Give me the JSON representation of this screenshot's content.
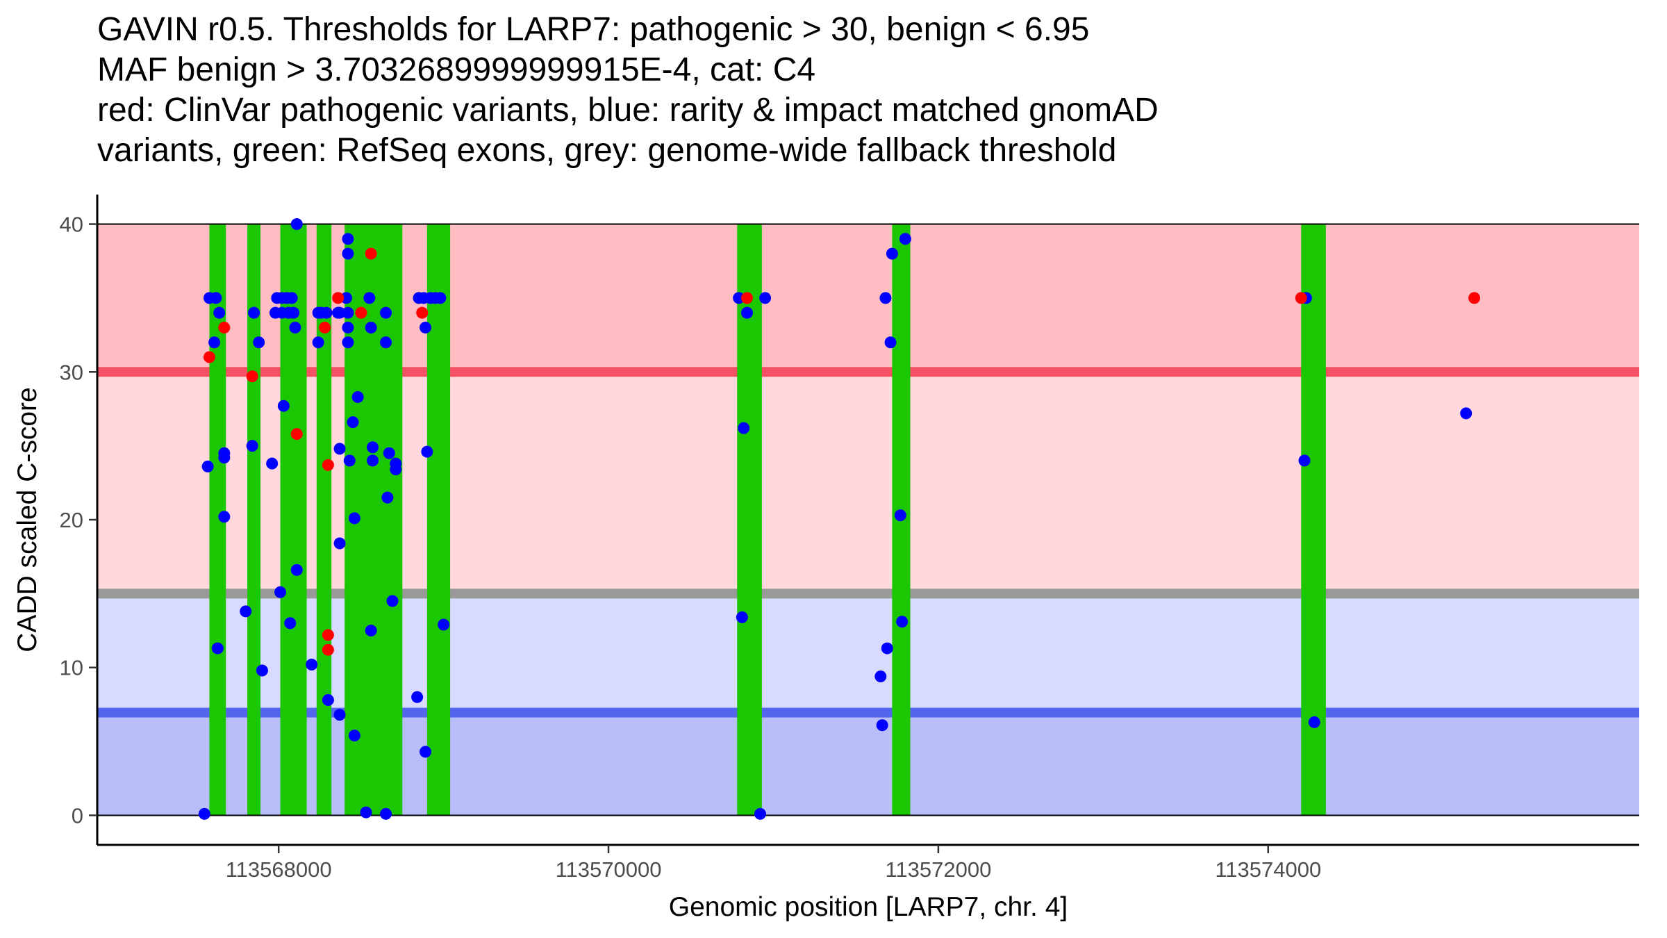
{
  "chart_data": {
    "type": "scatter",
    "title_lines": [
      "GAVIN r0.5. Thresholds for LARP7: pathogenic > 30, benign < 6.95",
      "MAF benign > 3.7032689999999915E-4, cat: C4",
      "red: ClinVar pathogenic variants, blue: rarity & impact matched gnomAD",
      "variants, green: RefSeq exons, grey: genome-wide fallback threshold"
    ],
    "xlabel": "Genomic position [LARP7, chr. 4]",
    "ylabel": "CADD scaled C-score",
    "xlim": [
      113566900,
      113576250
    ],
    "ylim": [
      -2,
      42
    ],
    "xticks": [
      113568000,
      113570000,
      113572000,
      113574000
    ],
    "xtick_labels": [
      "113568000",
      "113570000",
      "113572000",
      "113574000"
    ],
    "yticks": [
      0,
      10,
      20,
      30,
      40
    ],
    "ytick_labels": [
      "0",
      "10",
      "20",
      "30",
      "40"
    ],
    "regions": [
      {
        "name": "pathogenic-zone",
        "ymin": 30,
        "ymax": 40,
        "color": "#ffbcc2"
      },
      {
        "name": "pathogenic-fallback-zone",
        "ymin": 15,
        "ymax": 30,
        "color": "#ffd7dd"
      },
      {
        "name": "benign-fallback-zone",
        "ymin": 6.95,
        "ymax": 15,
        "color": "#d8daff"
      },
      {
        "name": "benign-zone",
        "ymin": 0,
        "ymax": 6.95,
        "color": "#b9bdfa"
      }
    ],
    "threshold_lines": [
      {
        "name": "pathogenic-threshold-line",
        "y": 30,
        "color": "#f45264"
      },
      {
        "name": "fallback-threshold-line",
        "y": 15,
        "color": "#999999"
      },
      {
        "name": "benign-threshold-line",
        "y": 6.95,
        "color": "#5566ee"
      }
    ],
    "exon_color": "#1ac700",
    "exons": [
      [
        113567580,
        113567680
      ],
      [
        113567810,
        113567890
      ],
      [
        113568010,
        113568170
      ],
      [
        113568230,
        113568320
      ],
      [
        113568400,
        113568750
      ],
      [
        113568900,
        113569040
      ],
      [
        113570780,
        113570930
      ],
      [
        113571720,
        113571830
      ],
      [
        113574200,
        113574350
      ]
    ],
    "series": [
      {
        "name": "ClinVar pathogenic variants",
        "color": "#ff0000",
        "points": [
          [
            113567580,
            31.0
          ],
          [
            113567670,
            33.0
          ],
          [
            113567840,
            29.7
          ],
          [
            113568110,
            25.8
          ],
          [
            113568280,
            33.0
          ],
          [
            113568300,
            23.7
          ],
          [
            113568300,
            12.2
          ],
          [
            113568300,
            11.2
          ],
          [
            113568360,
            35.0
          ],
          [
            113568500,
            34.0
          ],
          [
            113568560,
            38.0
          ],
          [
            113568870,
            34.0
          ],
          [
            113570840,
            35.0
          ],
          [
            113574200,
            35.0
          ],
          [
            113575250,
            35.0
          ]
        ]
      },
      {
        "name": "rarity & impact matched gnomAD variants",
        "color": "#0000ff",
        "points": [
          [
            113567550,
            0.1
          ],
          [
            113567570,
            23.6
          ],
          [
            113567580,
            35.0
          ],
          [
            113567610,
            32.0
          ],
          [
            113567620,
            35.0
          ],
          [
            113567630,
            11.3
          ],
          [
            113567640,
            34.0
          ],
          [
            113567670,
            24.5
          ],
          [
            113567670,
            24.2
          ],
          [
            113567670,
            20.2
          ],
          [
            113567800,
            13.8
          ],
          [
            113567840,
            25.0
          ],
          [
            113567850,
            34.0
          ],
          [
            113567880,
            32.0
          ],
          [
            113567900,
            9.8
          ],
          [
            113567960,
            23.8
          ],
          [
            113567980,
            34.0
          ],
          [
            113567990,
            35.0
          ],
          [
            113568010,
            15.1
          ],
          [
            113568020,
            35.0
          ],
          [
            113568020,
            34.0
          ],
          [
            113568030,
            27.7
          ],
          [
            113568050,
            35.0
          ],
          [
            113568060,
            34.0
          ],
          [
            113568060,
            34.0
          ],
          [
            113568070,
            13.0
          ],
          [
            113568080,
            35.0
          ],
          [
            113568090,
            34.0
          ],
          [
            113568100,
            33.0
          ],
          [
            113568110,
            40.0
          ],
          [
            113568110,
            16.6
          ],
          [
            113568200,
            10.2
          ],
          [
            113568240,
            32.0
          ],
          [
            113568240,
            34.0
          ],
          [
            113568260,
            34.0
          ],
          [
            113568290,
            34.0
          ],
          [
            113568300,
            7.8
          ],
          [
            113568360,
            34.0
          ],
          [
            113568370,
            34.0
          ],
          [
            113568370,
            24.8
          ],
          [
            113568370,
            18.4
          ],
          [
            113568370,
            6.8
          ],
          [
            113568410,
            35.0
          ],
          [
            113568420,
            39.0
          ],
          [
            113568420,
            38.0
          ],
          [
            113568420,
            34.0
          ],
          [
            113568420,
            33.0
          ],
          [
            113568420,
            32.0
          ],
          [
            113568430,
            24.0
          ],
          [
            113568450,
            26.6
          ],
          [
            113568460,
            20.1
          ],
          [
            113568460,
            5.4
          ],
          [
            113568480,
            28.3
          ],
          [
            113568530,
            0.2
          ],
          [
            113568550,
            35.0
          ],
          [
            113568560,
            33.0
          ],
          [
            113568560,
            12.5
          ],
          [
            113568570,
            24.0
          ],
          [
            113568570,
            24.9
          ],
          [
            113568650,
            0.1
          ],
          [
            113568650,
            34.0
          ],
          [
            113568650,
            32.0
          ],
          [
            113568660,
            21.5
          ],
          [
            113568670,
            24.5
          ],
          [
            113568690,
            14.5
          ],
          [
            113568710,
            23.8
          ],
          [
            113568710,
            23.4
          ],
          [
            113568840,
            8.0
          ],
          [
            113568850,
            35.0
          ],
          [
            113568880,
            35.0
          ],
          [
            113568890,
            33.0
          ],
          [
            113568890,
            4.3
          ],
          [
            113568900,
            24.6
          ],
          [
            113568920,
            35.0
          ],
          [
            113568950,
            35.0
          ],
          [
            113568980,
            35.0
          ],
          [
            113569000,
            12.9
          ],
          [
            113570790,
            35.0
          ],
          [
            113570810,
            13.4
          ],
          [
            113570820,
            26.2
          ],
          [
            113570840,
            34.0
          ],
          [
            113570920,
            0.1
          ],
          [
            113570950,
            35.0
          ],
          [
            113571650,
            9.4
          ],
          [
            113571660,
            6.1
          ],
          [
            113571680,
            35.0
          ],
          [
            113571690,
            11.3
          ],
          [
            113571710,
            32.0
          ],
          [
            113571720,
            38.0
          ],
          [
            113571770,
            20.3
          ],
          [
            113571780,
            13.1
          ],
          [
            113571800,
            39.0
          ],
          [
            113574220,
            24.0
          ],
          [
            113574230,
            35.0
          ],
          [
            113574280,
            6.3
          ],
          [
            113575200,
            27.2
          ]
        ]
      }
    ]
  }
}
